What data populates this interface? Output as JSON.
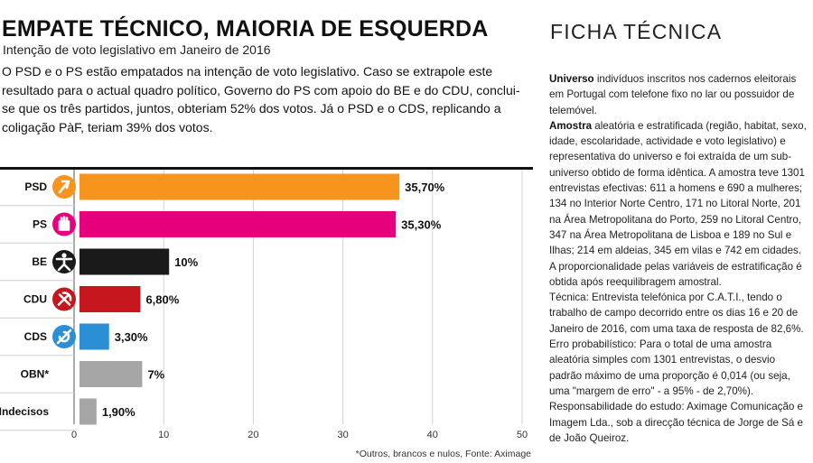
{
  "headline": "EMPATE TÉCNICO, MAIORIA DE ESQUERDA",
  "subtitle": "Intenção de voto legislativo em Janeiro de 2016",
  "intro": "O PSD e o PS estão empatados na intenção de voto legislativo. Caso se extrapole este resultado para o actual quadro político, Governo do PS com apoio do BE e do CDU, conclui-se que os três partidos, juntos, obteriam 52% dos votos. Já o PSD e o CDS, replicando a coligação PàF, teriam 39% dos votos.",
  "source": "*Outros, brancos e nulos, Fonte: Aximage",
  "ficha": {
    "title": "FICHA TÉCNICA",
    "sections": [
      {
        "label": "Universo",
        "text": " indivíduos inscritos nos cadernos eleitorais em Portugal com telefone fixo no lar ou possuidor de telemóvel."
      },
      {
        "label": "Amostra",
        "text": " aleatória e estratificada (região, habitat, sexo, idade, escolaridade, actividade e voto legislativo) e representativa do universo e foi extraída de um sub-universo obtido de forma idêntica. A amostra teve 1301 entrevistas efectivas: 611 a homens e 690 a mulheres; 134 no Interior Norte Centro, 171 no Litoral Norte, 201 na Área Metropolitana do Porto, 259 no Litoral Centro, 347 na Área Metropolitana de Lisboa e 189 no Sul e Ilhas; 214 em aldeias, 345 em vilas e 742 em cidades. A proporcionalidade pelas variáveis de estratificação é obtida após reequilibragem amostral."
      },
      {
        "label": "",
        "text": "Técnica: Entrevista telefónica por C.A.T.I., tendo o trabalho de campo decorrido entre os dias 16 e 20 de Janeiro de 2016, com uma taxa de resposta de 82,6%."
      },
      {
        "label": "",
        "text": "Erro probabilístico: Para o total de uma amostra aleatória simples com 1301 entrevistas, o desvio padrão máximo de uma proporção é 0,014 (ou seja, uma \"margem de erro\" - a 95% - de 2,70%)."
      },
      {
        "label": "",
        "text": "Responsabilidade do estudo: Aximage Comunicação e Imagem Lda., sob a direcção técnica de Jorge de Sá e de João Queiroz."
      }
    ]
  },
  "chart_data": {
    "type": "bar",
    "orientation": "horizontal",
    "categories": [
      "PSD",
      "PS",
      "BE",
      "CDU",
      "CDS",
      "OBN*",
      "Indecisos"
    ],
    "values": [
      35.7,
      35.3,
      10,
      6.8,
      3.3,
      7,
      1.9
    ],
    "value_labels": [
      "35,70%",
      "35,30%",
      "10%",
      "6,80%",
      "3,30%",
      "7%",
      "1,90%"
    ],
    "colors": [
      "#f7941d",
      "#e6007e",
      "#1a1a1a",
      "#c4161c",
      "#2b8fd6",
      "#a6a6a6",
      "#a6a6a6"
    ],
    "icons": [
      "psd-logo-icon",
      "ps-logo-icon",
      "be-logo-icon",
      "cdu-logo-icon",
      "cds-logo-icon",
      "",
      ""
    ],
    "xlim": [
      0,
      50
    ],
    "xticks": [
      "0",
      "10",
      "20",
      "30",
      "40",
      "50"
    ],
    "title": "",
    "xlabel": "",
    "ylabel": "",
    "grid": true
  }
}
